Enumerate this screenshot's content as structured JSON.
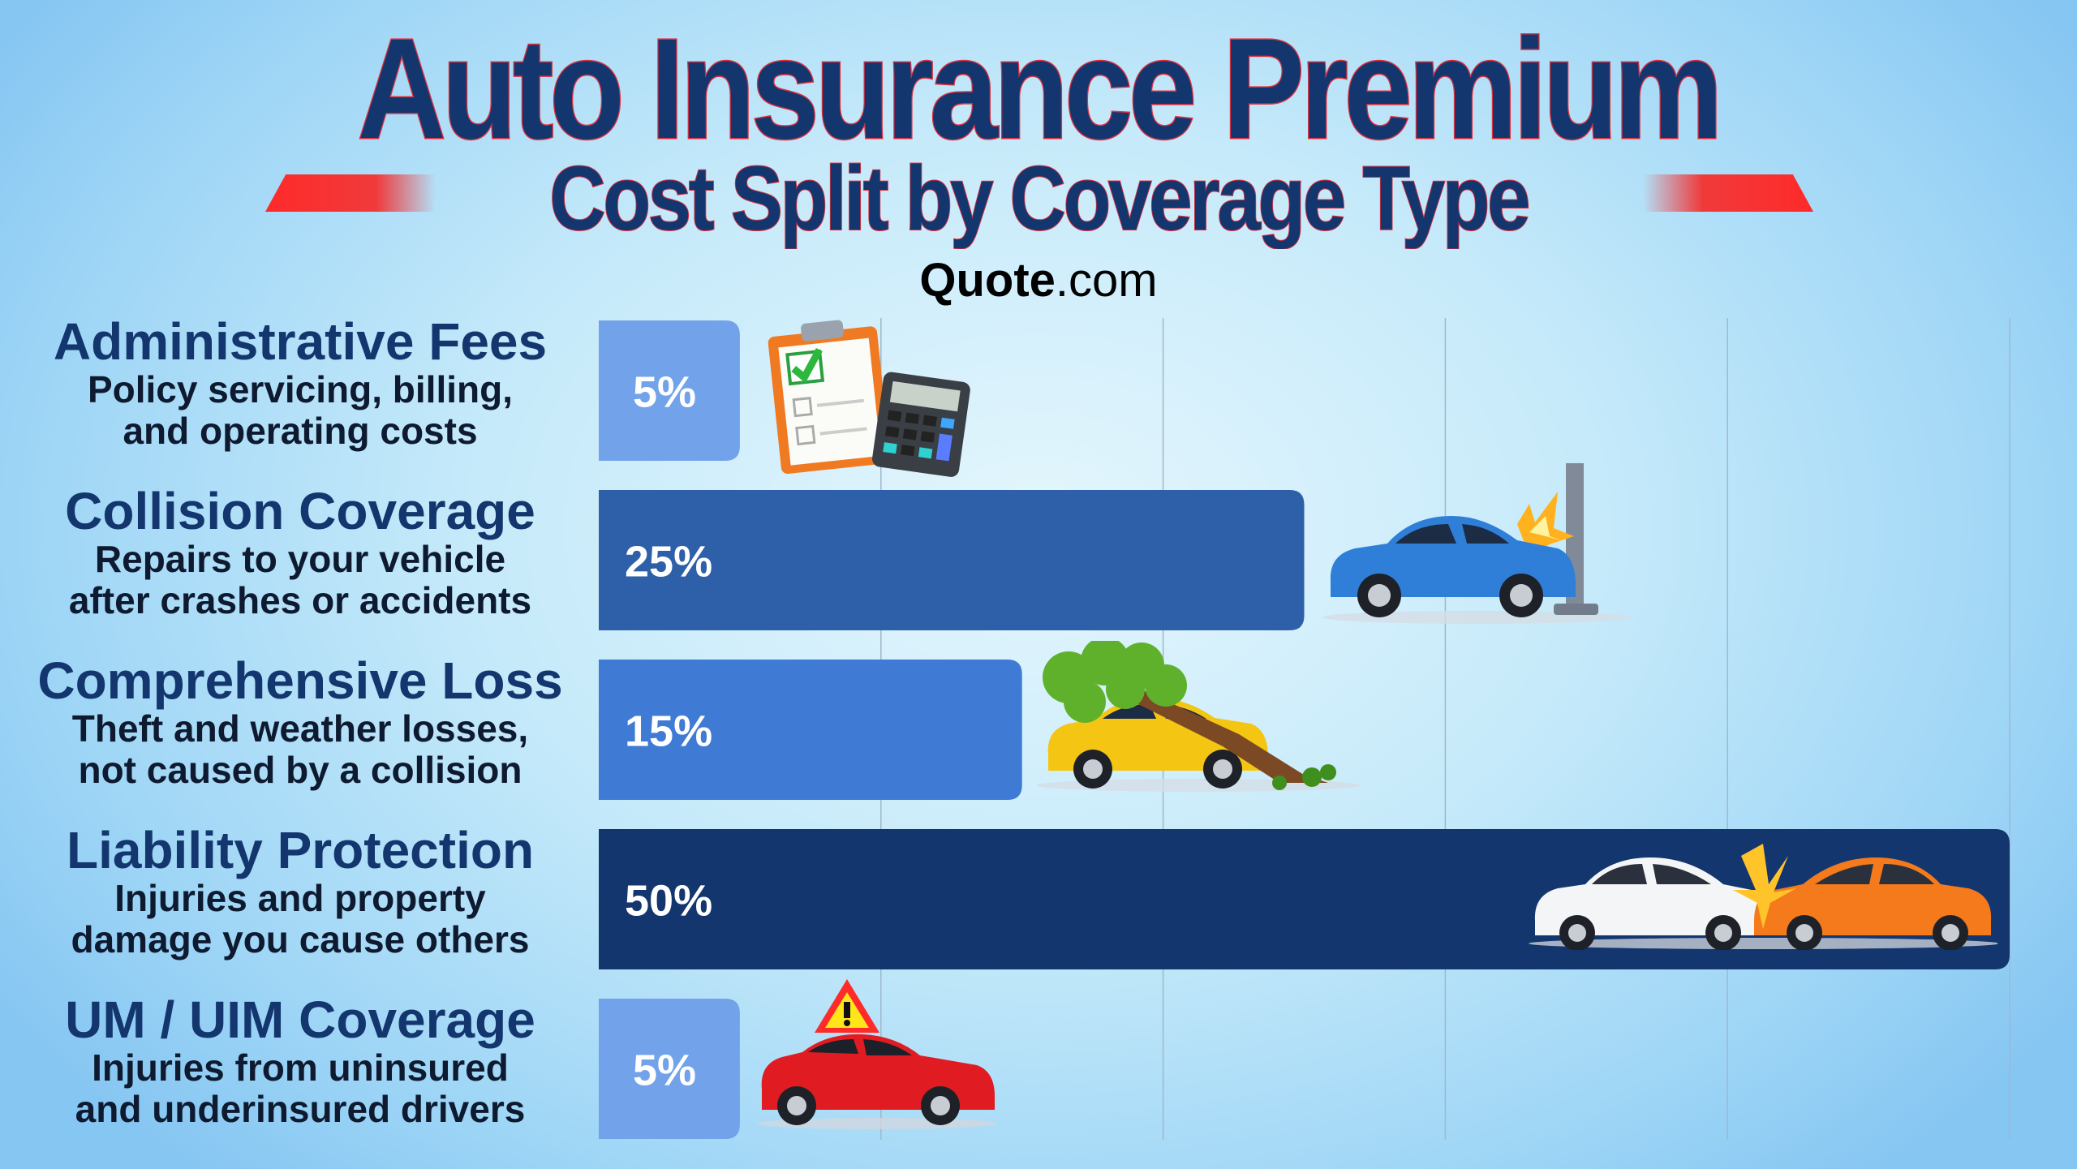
{
  "title": "Auto Insurance Premium",
  "subtitle": "Cost Split by Coverage Type",
  "brand": {
    "bold": "Quote",
    "rest": ".com"
  },
  "chart_data": {
    "type": "bar",
    "orientation": "horizontal",
    "title": "Auto Insurance Premium",
    "subtitle": "Cost Split by Coverage Type",
    "xlim": [
      0,
      50
    ],
    "grid": true,
    "categories": [
      "Administrative Fees",
      "Collision Coverage",
      "Comprehensive Loss",
      "Liability Protection",
      "UM / UIM Coverage"
    ],
    "descriptions": [
      [
        "Policy servicing, billing,",
        "and operating costs"
      ],
      [
        "Repairs to your vehicle",
        "after crashes or accidents"
      ],
      [
        "Theft and weather losses,",
        "not caused by a collision"
      ],
      [
        "Injuries and property",
        "damage you cause others"
      ],
      [
        "Injuries from uninsured",
        "and underinsured drivers"
      ]
    ],
    "values": [
      5,
      25,
      15,
      50,
      5
    ],
    "data_labels": [
      "5%",
      "25%",
      "15%",
      "50%",
      "5%"
    ],
    "colors": [
      "#72a3ea",
      "#2e5fa9",
      "#3f7bd5",
      "#14366e",
      "#72a3ea"
    ],
    "illustrations": [
      "clipboard-calculator",
      "car-hitting-pole",
      "tree-fallen-on-car",
      "two-car-collision",
      "car-warning-sign"
    ]
  }
}
